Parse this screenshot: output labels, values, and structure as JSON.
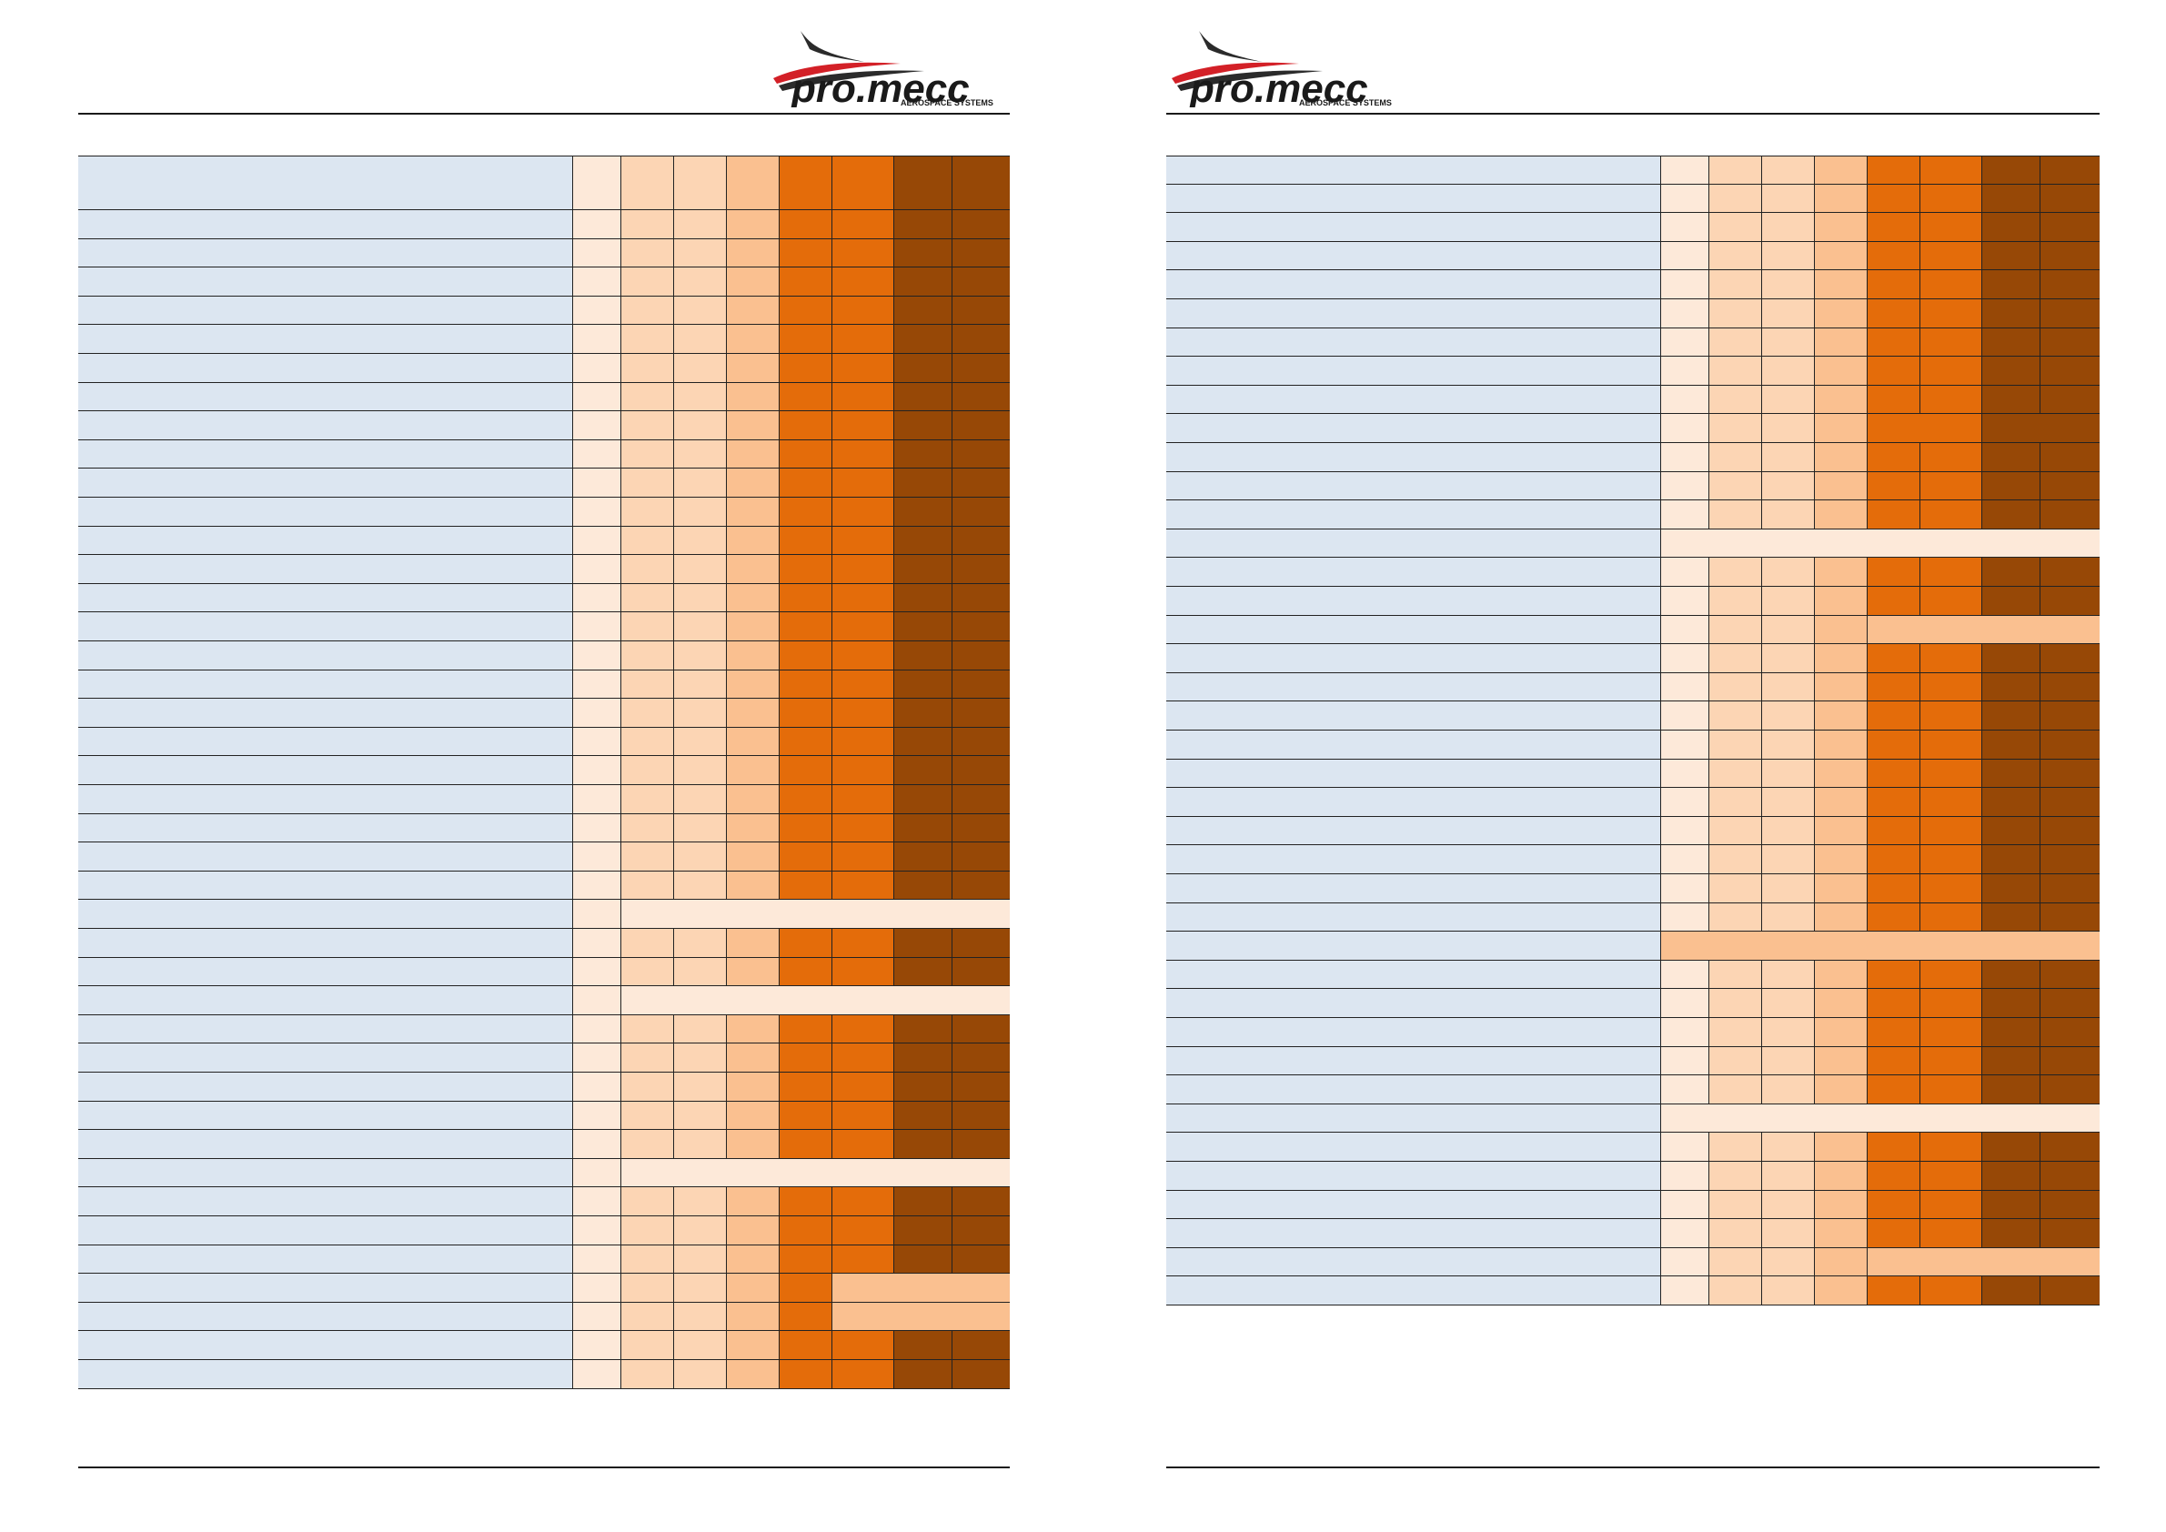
{
  "brand": {
    "logo_text": "pro.mecc",
    "logo_subtext": "AEROSPACE SYSTEMS",
    "colors": {
      "swoosh_red": "#d32027",
      "swoosh_dark": "#2b2b2b",
      "text": "#1a1a1a"
    }
  },
  "palette": {
    "label": "#dce6f1",
    "c0": "#fde9d9",
    "c1": "#fcd5b4",
    "c2": "#fac090",
    "c3": "#e46c0a",
    "c4": "#974806",
    "grid": "#222222"
  },
  "pages": [
    {
      "id": "left",
      "rows": [
        "H",
        "F",
        "F",
        "F",
        "F",
        "F",
        "F",
        "F",
        "F",
        "F",
        "F",
        "F",
        "F",
        "F",
        "F",
        "F",
        "F",
        "F",
        "F",
        "F",
        "F",
        "F",
        "F",
        "F",
        "F",
        "B0",
        "F",
        "F",
        "B0",
        "F",
        "F",
        "F",
        "F",
        "F",
        "B0",
        "F",
        "F",
        "F",
        "P4",
        "P4",
        "F",
        "F"
      ]
    },
    {
      "id": "right",
      "rows": [
        "F",
        "F",
        "F",
        "F",
        "F",
        "F",
        "F",
        "F",
        "F",
        "G3",
        "F",
        "F",
        "F",
        "A0",
        "F",
        "F",
        "P3",
        "F",
        "F",
        "F",
        "F",
        "F",
        "F",
        "F",
        "F",
        "F",
        "F",
        "A2",
        "F",
        "F",
        "F",
        "F",
        "F",
        "A0",
        "F",
        "F",
        "F",
        "F",
        "P3",
        "F"
      ]
    }
  ]
}
